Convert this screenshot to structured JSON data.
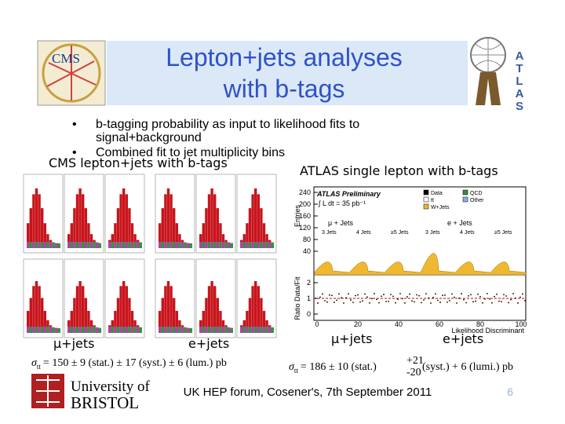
{
  "header": {
    "title_lines": [
      "Lepton+jets analyses",
      "with b-tags"
    ],
    "cms_logo": "CMS",
    "atlas_logo": [
      "A",
      "T",
      "L",
      "A",
      "S"
    ]
  },
  "bullets": [
    [
      "b-tagging probability as input to likelihood fits to",
      "signal+background"
    ],
    [
      "Combined fit to jet multiplicity bins"
    ]
  ],
  "cms_section": {
    "heading": "CMS lepton+jets with b-tags",
    "channels": [
      "μ+jets",
      "e+jets"
    ],
    "result": {
      "symbol": "σ",
      "subscript": "tt",
      "text": "= 150 ± 9 (stat.) ± 17 (syst.) ± 6 (lum.) pb"
    }
  },
  "atlas_section": {
    "heading": "ATLAS single lepton with b-tags",
    "channels": [
      "μ+jets",
      "e+jets"
    ],
    "plot": {
      "y_label": "Entries",
      "ratio_label": "Ratio Data/Fit",
      "x_label": "Likelihood Discriminant",
      "yticks": [
        "240",
        "200",
        "160",
        "120",
        "80",
        "40"
      ],
      "ratio_ticks": [
        "2",
        "1",
        "0"
      ],
      "xticks": [
        "0",
        "20",
        "40",
        "60",
        "80",
        "100"
      ],
      "tag": "ATLAS Preliminary",
      "lumi": "∫ L dt = 35 pb⁻¹",
      "legend": [
        "Data",
        "tt",
        "W+Jets",
        "QCD",
        "Other"
      ],
      "channel_labels": [
        "μ + Jets",
        "e + Jets"
      ],
      "jet_bins": [
        "3 Jets",
        "4 Jets",
        "≥5 Jets",
        "3 Jets",
        "4 Jets",
        "≥5 Jets"
      ]
    },
    "result": {
      "symbol": "σ",
      "subscript": "tt",
      "text_before": "= 186 ± 10 (stat.)",
      "sup": "+21",
      "sub": "-20",
      "text_after": "(syst.) + 6 (lumi.) pb"
    }
  },
  "footer": {
    "university": [
      "University of",
      "BRISTOL"
    ],
    "event": "UK HEP forum, Cosener's, 7th September 2011",
    "page": "6"
  }
}
